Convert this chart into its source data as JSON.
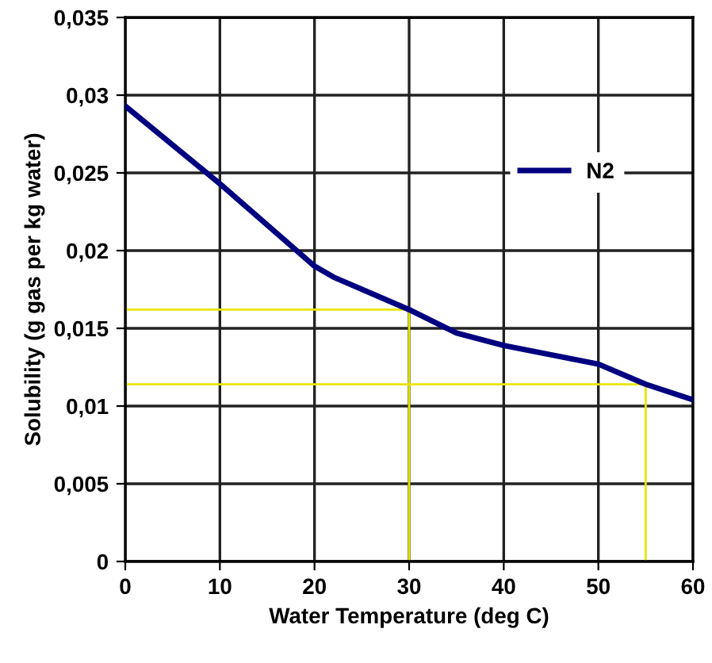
{
  "chart_data": {
    "type": "line",
    "xlabel": "Water Temperature (deg C)",
    "ylabel": "Solubility (g gas per kg water)",
    "series": [
      {
        "name": "N2",
        "color": "#000080",
        "x": [
          0,
          10,
          20,
          22,
          30,
          35,
          40,
          50,
          55,
          60
        ],
        "values": [
          0.0293,
          0.0243,
          0.019,
          0.0183,
          0.0162,
          0.0147,
          0.0139,
          0.0127,
          0.0114,
          0.0104
        ]
      },
      {
        "color": "#e6e600",
        "x": [
          0,
          30,
          30
        ],
        "values": [
          0.0162,
          0.0162,
          0
        ]
      },
      {
        "color": "#e6e600",
        "x": [
          0,
          55,
          55
        ],
        "values": [
          0.0114,
          0.0114,
          0
        ]
      }
    ],
    "xlim": [
      0,
      60
    ],
    "xticks": [
      0,
      10,
      20,
      30,
      40,
      50,
      60
    ],
    "ylim": [
      0,
      0.035
    ],
    "yticks": [
      {
        "value": 0,
        "label": "0"
      },
      {
        "value": 0.005,
        "label": "0,005"
      },
      {
        "value": 0.01,
        "label": "0,01"
      },
      {
        "value": 0.015,
        "label": "0,015"
      },
      {
        "value": 0.02,
        "label": "0,02"
      },
      {
        "value": 0.025,
        "label": "0,025"
      },
      {
        "value": 0.03,
        "label": "0,03"
      },
      {
        "value": 0.035,
        "label": "0,035"
      }
    ],
    "grid": true,
    "legend": "right"
  }
}
